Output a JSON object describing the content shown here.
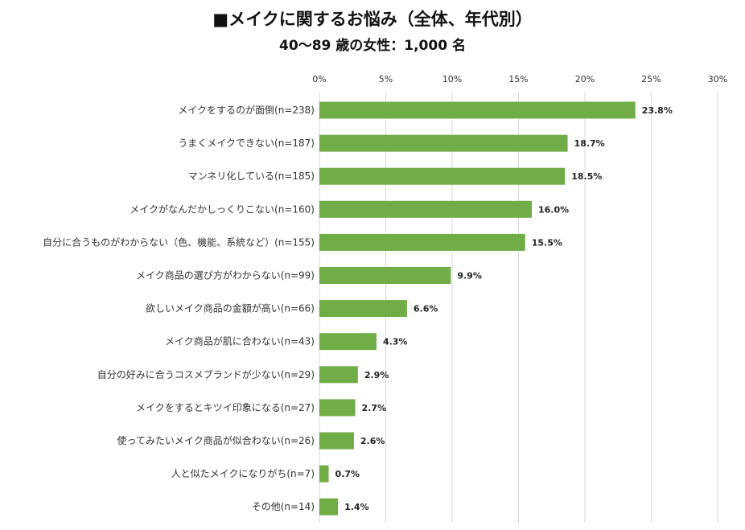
{
  "chart_data": {
    "type": "bar",
    "orientation": "horizontal",
    "title": "■メイクに関するお悩み（全体、年代別）",
    "subtitle": "40～89 歳の女性：1,000 名",
    "categories": [
      "メイクをするのが面倒(n=238)",
      "うまくメイクできない(n=187)",
      "マンネリ化している(n=185)",
      "メイクがなんだかしっくりこない(n=160)",
      "自分に合うものがわからない（色、機能、系統など）(n=155)",
      "メイク商品の選び方がわからない(n=99)",
      "欲しいメイク商品の金額が高い(n=66)",
      "メイク商品が肌に合わない(n=43)",
      "自分の好みに合うコスメブランドが少ない(n=29)",
      "メイクをするとキツイ印象になる(n=27)",
      "使ってみたいメイク商品が似合わない(n=26)",
      "人と似たメイクになりがち(n=7)",
      "その他(n=14)"
    ],
    "values": [
      23.8,
      18.7,
      18.5,
      16.0,
      15.5,
      9.9,
      6.6,
      4.3,
      2.9,
      2.7,
      2.6,
      0.7,
      1.4
    ],
    "value_labels": [
      "23.8%",
      "18.7%",
      "18.5%",
      "16.0%",
      "15.5%",
      "9.9%",
      "6.6%",
      "4.3%",
      "2.9%",
      "2.7%",
      "2.6%",
      "0.7%",
      "1.4%"
    ],
    "xlim": [
      0,
      30
    ],
    "xticks": [
      "0%",
      "5%",
      "10%",
      "15%",
      "20%",
      "25%",
      "30%"
    ],
    "grid": true,
    "bar_color": "#70ad47",
    "grid_color": "#d9d9d9"
  }
}
